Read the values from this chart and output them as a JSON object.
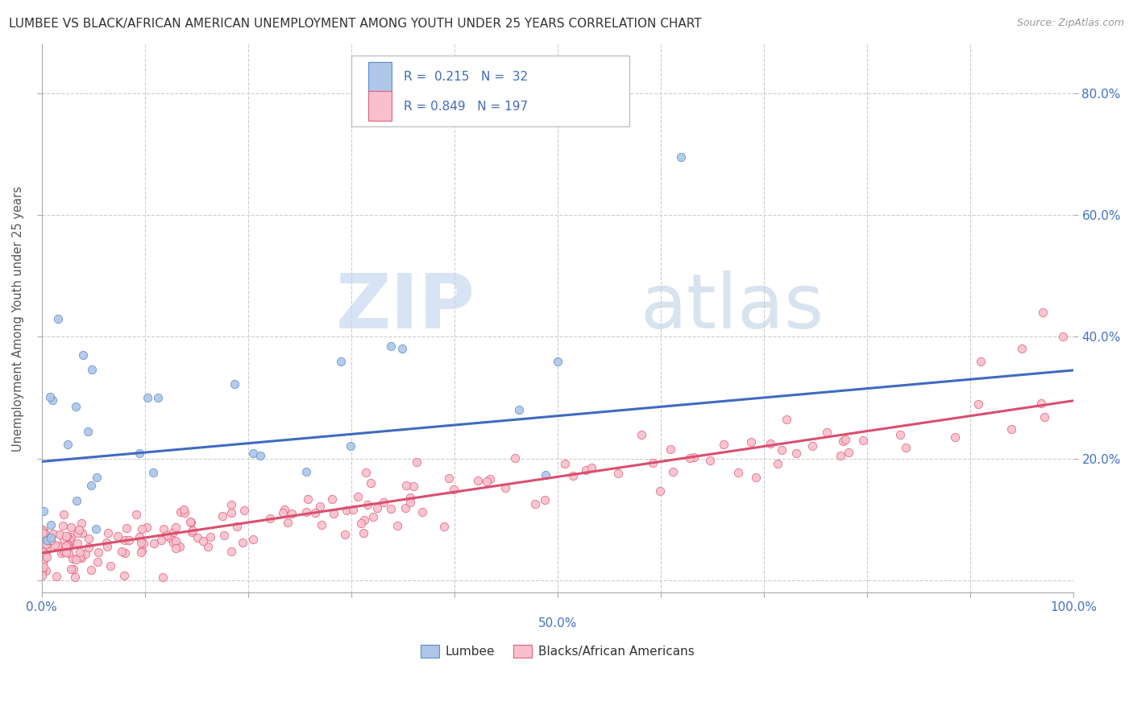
{
  "title": "LUMBEE VS BLACK/AFRICAN AMERICAN UNEMPLOYMENT AMONG YOUTH UNDER 25 YEARS CORRELATION CHART",
  "source": "Source: ZipAtlas.com",
  "ylabel": "Unemployment Among Youth under 25 years",
  "watermark_zip": "ZIP",
  "watermark_atlas": "atlas",
  "lumbee_color": "#aec6e8",
  "lumbee_edge": "#5b8fc9",
  "pink_color": "#f9c0cc",
  "pink_edge": "#e0607a",
  "blue_line_color": "#3f6bbf",
  "pink_line_color": "#d94f6e",
  "title_color": "#333333",
  "grid_color": "#cccccc",
  "tick_color": "#4472c4",
  "xlim": [
    0.0,
    1.0
  ],
  "ylim": [
    -0.02,
    0.88
  ],
  "blue_trend_y_start": 0.195,
  "blue_trend_y_end": 0.345,
  "pink_trend_y_start": 0.045,
  "pink_trend_y_end": 0.295
}
